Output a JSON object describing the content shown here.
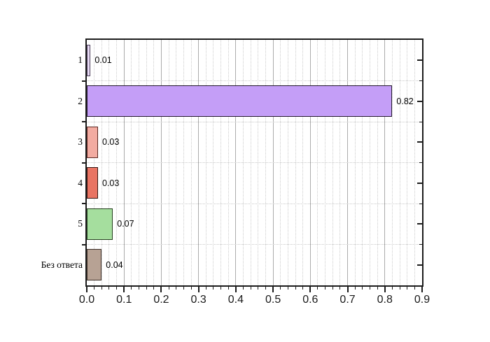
{
  "figure": {
    "background": "#ffffff"
  },
  "chart_data": {
    "type": "bar",
    "orientation": "horizontal",
    "title": "",
    "xlabel": "",
    "ylabel": "",
    "categories": [
      "1",
      "2",
      "3",
      "4",
      "5",
      "Без ответа"
    ],
    "values": [
      0.01,
      0.82,
      0.03,
      0.03,
      0.07,
      0.04
    ],
    "value_labels": [
      "0.01",
      "0.82",
      "0.03",
      "0.03",
      "0.07",
      "0.04"
    ],
    "bar_fill_colors": [
      "#E8DBF5",
      "#C49EF7",
      "#F2ABA1",
      "#E97463",
      "#A5DE9E",
      "#B7A294"
    ],
    "bar_border_colors": [
      "#4A3D57",
      "#241A2E",
      "#58241E",
      "#351511",
      "#26411F",
      "#3E3028"
    ],
    "xlim": [
      0,
      0.9
    ],
    "x_major_tick_labels": [
      "0.0",
      "0.1",
      "0.2",
      "0.3",
      "0.4",
      "0.5",
      "0.6",
      "0.7",
      "0.8",
      "0.9"
    ],
    "x_major_step": 0.1,
    "x_minor_step": 0.02,
    "grid": {
      "vertical_major": "solid",
      "vertical_minor": "dotted",
      "horizontal_minor_at_band_boundaries": "dotted"
    },
    "legend": "none"
  },
  "colors": {
    "spine": "#1c1c1c",
    "grid_major": "#ababab",
    "grid_minor": "#cccccc",
    "text": "#000000"
  }
}
